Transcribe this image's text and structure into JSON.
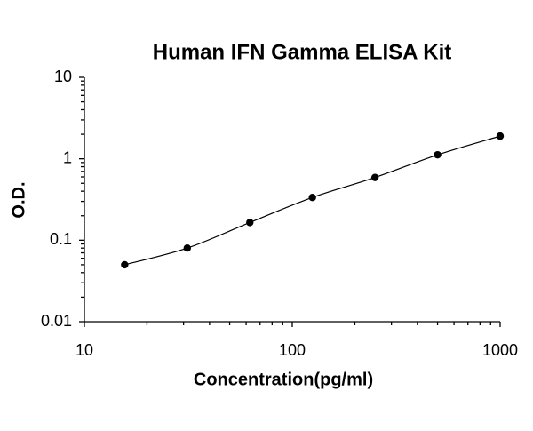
{
  "chart_data": {
    "type": "scatter",
    "title": "Human IFN Gamma ELISA Kit",
    "x_label": "Concentration(pg/ml)",
    "y_label": "O.D.",
    "x": [
      15.625,
      31.25,
      62.5,
      125,
      250,
      500,
      1000
    ],
    "values": [
      0.05,
      0.08,
      0.165,
      0.335,
      0.59,
      1.12,
      1.9
    ],
    "color": "#000000",
    "fit_line": true,
    "minor_ticks": true,
    "xscale": "log",
    "yscale": "log",
    "xlim": [
      10,
      1000
    ],
    "xticks": [
      10,
      100,
      1000
    ],
    "ylim": [
      0.01,
      10
    ],
    "yticks": [
      0.01,
      0.1,
      1,
      10
    ]
  }
}
